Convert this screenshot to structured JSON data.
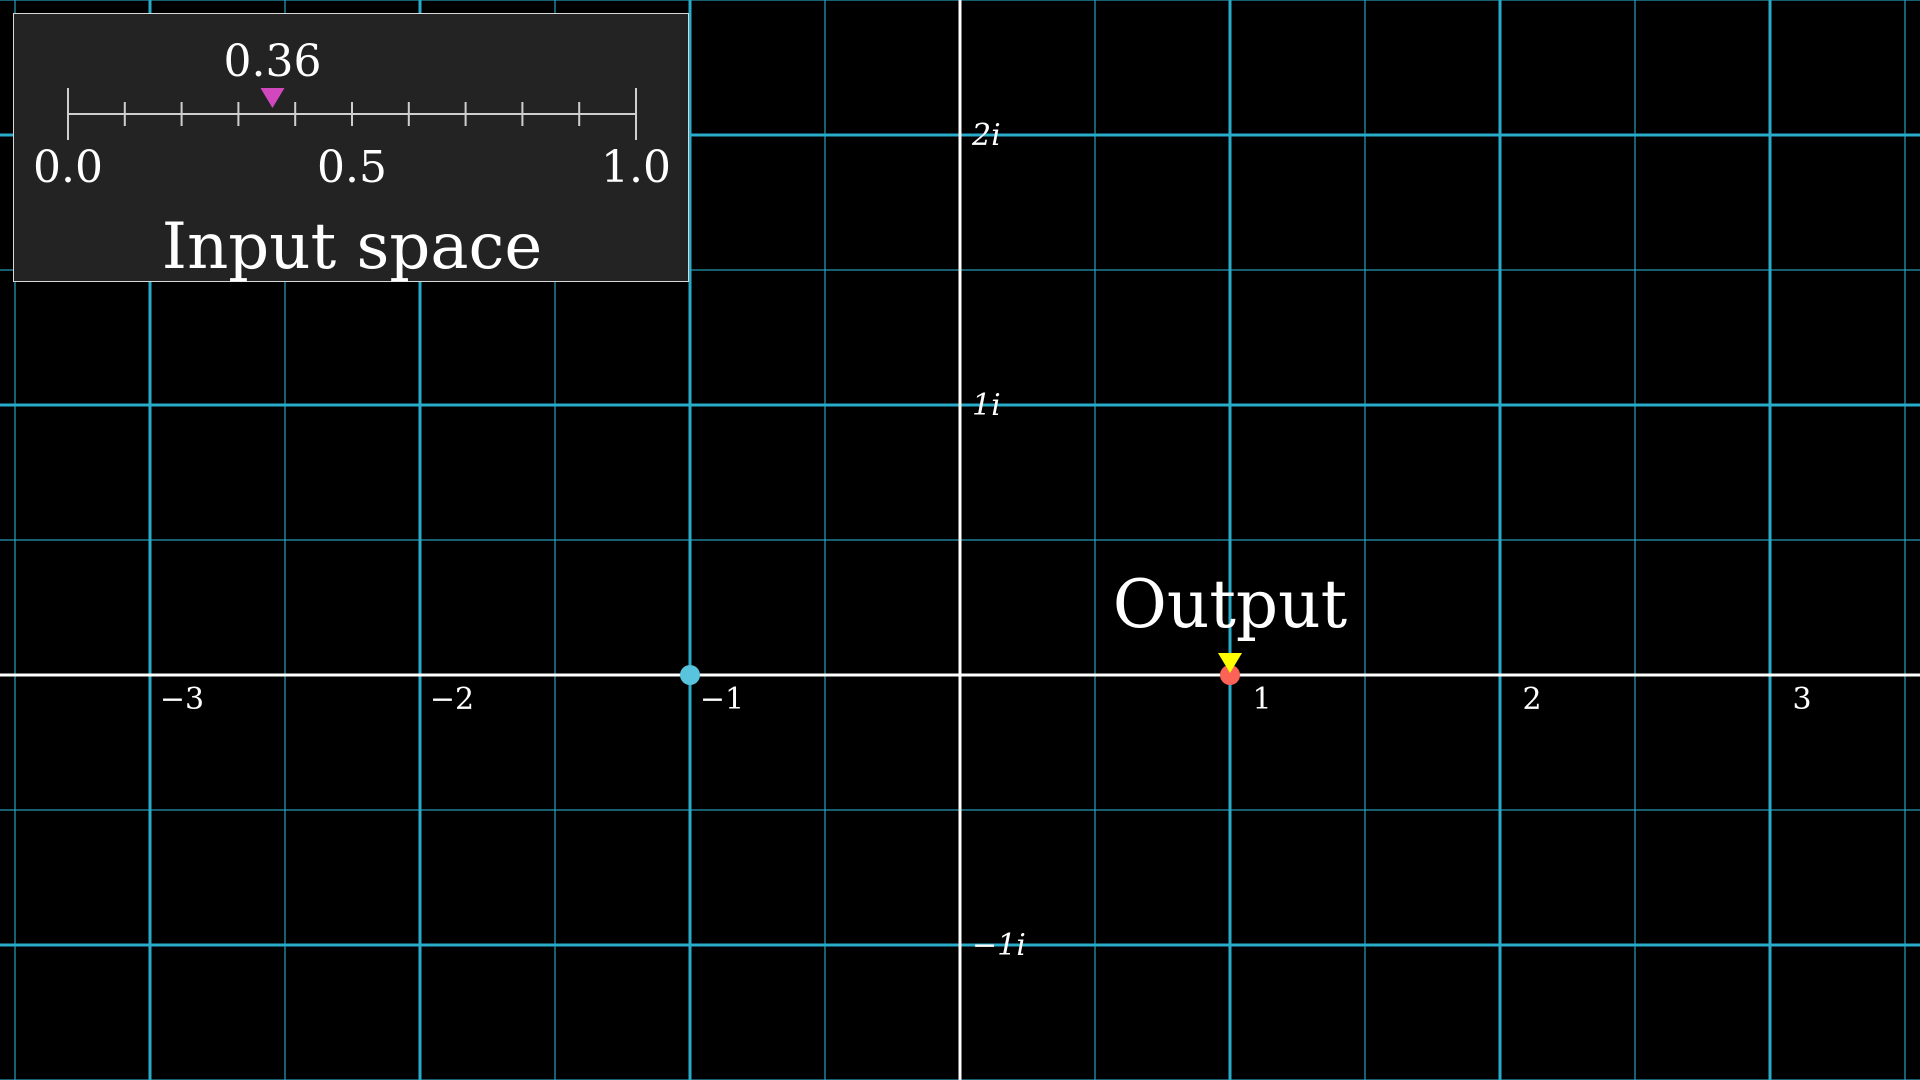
{
  "complex_plane": {
    "real_range": [
      -3.56,
      3.56
    ],
    "imag_range": [
      -1.5,
      2.5
    ],
    "real_tick_labels": [
      {
        "value": -3,
        "text": "−3"
      },
      {
        "value": -2,
        "text": "−2"
      },
      {
        "value": -1,
        "text": "−1"
      },
      {
        "value": 1,
        "text": "1"
      },
      {
        "value": 2,
        "text": "2"
      },
      {
        "value": 3,
        "text": "3"
      }
    ],
    "imag_tick_labels": [
      {
        "value": 2,
        "text": "2i"
      },
      {
        "value": 1,
        "text": "1i"
      },
      {
        "value": -1,
        "text": "−1i"
      }
    ],
    "grid_color": "#29abca",
    "axis_color": "#ffffff",
    "background": "#000000"
  },
  "points": {
    "blue_point": {
      "re": -1,
      "im": 0,
      "color": "#58c4dd"
    },
    "output_point": {
      "re": 1,
      "im": 0,
      "color": "#fc6255"
    }
  },
  "output_marker": {
    "label": "Output",
    "color": "#ffff00"
  },
  "input_panel": {
    "title": "Input space",
    "value": 0.36,
    "value_text": "0.36",
    "range": [
      0,
      1
    ],
    "tick_labels": [
      {
        "value": 0.0,
        "text": "0.0"
      },
      {
        "value": 0.5,
        "text": "0.5"
      },
      {
        "value": 1.0,
        "text": "1.0"
      }
    ],
    "marker_color": "#d147bd"
  }
}
